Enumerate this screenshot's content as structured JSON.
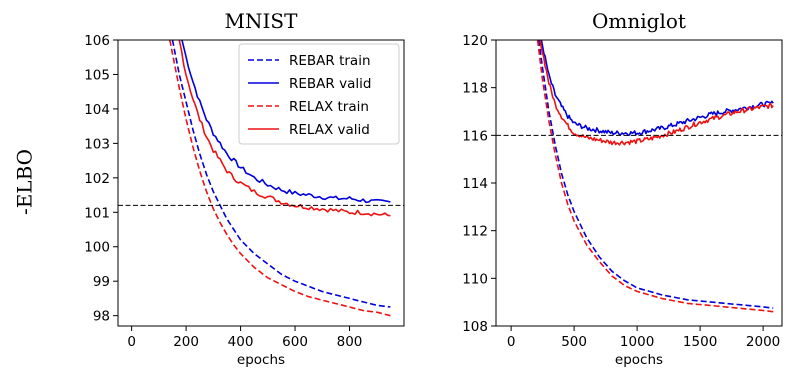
{
  "ylabel": "-ELBO",
  "legend": [
    {
      "label": "REBAR train",
      "color": "#0000dd",
      "dash": true
    },
    {
      "label": "REBAR valid",
      "color": "#0000dd",
      "dash": false
    },
    {
      "label": "RELAX train",
      "color": "#ee1111",
      "dash": true
    },
    {
      "label": "RELAX valid",
      "color": "#ee1111",
      "dash": false
    }
  ],
  "chart_data": [
    {
      "type": "line",
      "title": "MNIST",
      "xlabel": "epochs",
      "xlim": [
        -50,
        1000
      ],
      "ylim": [
        97.7,
        106
      ],
      "xticks": [
        0,
        200,
        400,
        600,
        800
      ],
      "yticks": [
        98,
        99,
        100,
        101,
        102,
        103,
        104,
        105,
        106
      ],
      "hline": 101.2,
      "legend_position": "top-right",
      "series": [
        {
          "name": "REBAR train",
          "color": "#0000dd",
          "dash": true,
          "noise": 0,
          "x": [
            150,
            175,
            200,
            225,
            250,
            275,
            300,
            325,
            350,
            375,
            400,
            450,
            500,
            550,
            600,
            650,
            700,
            750,
            800,
            850,
            900,
            950
          ],
          "y": [
            106.0,
            105.0,
            104.2,
            103.4,
            102.7,
            102.1,
            101.6,
            101.2,
            100.8,
            100.5,
            100.2,
            99.8,
            99.5,
            99.2,
            99.0,
            98.85,
            98.7,
            98.6,
            98.5,
            98.4,
            98.3,
            98.25
          ]
        },
        {
          "name": "REBAR valid",
          "color": "#0000dd",
          "dash": false,
          "noise": 0.07,
          "x": [
            185,
            200,
            225,
            250,
            275,
            300,
            325,
            350,
            375,
            400,
            450,
            500,
            550,
            600,
            650,
            700,
            750,
            800,
            850,
            900,
            950
          ],
          "y": [
            106.0,
            105.5,
            104.8,
            104.2,
            103.7,
            103.3,
            103.0,
            102.7,
            102.5,
            102.3,
            102.0,
            101.8,
            101.65,
            101.55,
            101.5,
            101.45,
            101.4,
            101.4,
            101.35,
            101.3,
            101.3
          ]
        },
        {
          "name": "RELAX train",
          "color": "#ee1111",
          "dash": true,
          "noise": 0,
          "x": [
            140,
            175,
            200,
            225,
            250,
            275,
            300,
            325,
            350,
            375,
            400,
            450,
            500,
            550,
            600,
            650,
            700,
            750,
            800,
            850,
            900,
            950
          ],
          "y": [
            106.0,
            104.6,
            103.7,
            102.9,
            102.2,
            101.6,
            101.1,
            100.7,
            100.35,
            100.05,
            99.8,
            99.4,
            99.1,
            98.9,
            98.7,
            98.55,
            98.45,
            98.35,
            98.25,
            98.15,
            98.1,
            98.0
          ]
        },
        {
          "name": "RELAX valid",
          "color": "#ee1111",
          "dash": false,
          "noise": 0.07,
          "x": [
            175,
            200,
            225,
            250,
            275,
            300,
            325,
            350,
            375,
            400,
            450,
            500,
            550,
            600,
            650,
            700,
            750,
            800,
            850,
            900,
            950
          ],
          "y": [
            106.0,
            105.0,
            104.3,
            103.7,
            103.2,
            102.8,
            102.5,
            102.2,
            102.0,
            101.85,
            101.6,
            101.45,
            101.3,
            101.2,
            101.15,
            101.1,
            101.05,
            101.0,
            101.0,
            100.95,
            100.9
          ]
        }
      ]
    },
    {
      "type": "line",
      "title": "Omniglot",
      "xlabel": "epochs",
      "xlim": [
        -120,
        2150
      ],
      "ylim": [
        108,
        120
      ],
      "xticks": [
        0,
        500,
        1000,
        1500,
        2000
      ],
      "yticks": [
        108,
        110,
        112,
        114,
        116,
        118,
        120
      ],
      "hline": 116.0,
      "series": [
        {
          "name": "REBAR train",
          "color": "#0000dd",
          "dash": true,
          "noise": 0,
          "x": [
            220,
            250,
            300,
            350,
            400,
            450,
            500,
            600,
            700,
            800,
            900,
            1000,
            1200,
            1400,
            1600,
            1800,
            2000,
            2080
          ],
          "y": [
            120.0,
            118.8,
            117.0,
            115.6,
            114.4,
            113.5,
            112.8,
            111.7,
            110.9,
            110.3,
            109.9,
            109.6,
            109.3,
            109.1,
            109.0,
            108.9,
            108.8,
            108.75
          ]
        },
        {
          "name": "REBAR valid",
          "color": "#0000dd",
          "dash": false,
          "noise": 0.1,
          "x": [
            240,
            300,
            350,
            400,
            450,
            500,
            600,
            700,
            800,
            900,
            1000,
            1100,
            1200,
            1300,
            1400,
            1500,
            1600,
            1700,
            1800,
            1900,
            2000,
            2080
          ],
          "y": [
            120.0,
            118.5,
            117.7,
            117.2,
            116.8,
            116.5,
            116.3,
            116.2,
            116.1,
            116.1,
            116.1,
            116.2,
            116.3,
            116.45,
            116.6,
            116.75,
            116.9,
            117.0,
            117.1,
            117.2,
            117.3,
            117.35
          ]
        },
        {
          "name": "RELAX train",
          "color": "#ee1111",
          "dash": true,
          "noise": 0,
          "x": [
            210,
            250,
            300,
            350,
            400,
            450,
            500,
            600,
            700,
            800,
            900,
            1000,
            1200,
            1400,
            1600,
            1800,
            2000,
            2080
          ],
          "y": [
            120.0,
            118.3,
            116.6,
            115.2,
            114.0,
            113.1,
            112.4,
            111.4,
            110.7,
            110.1,
            109.7,
            109.45,
            109.15,
            108.95,
            108.85,
            108.75,
            108.65,
            108.6
          ]
        },
        {
          "name": "RELAX valid",
          "color": "#ee1111",
          "dash": false,
          "noise": 0.1,
          "x": [
            230,
            300,
            350,
            400,
            450,
            500,
            600,
            700,
            800,
            900,
            1000,
            1100,
            1200,
            1300,
            1400,
            1500,
            1600,
            1700,
            1800,
            1900,
            2000,
            2080
          ],
          "y": [
            120.0,
            118.2,
            117.3,
            116.8,
            116.4,
            116.1,
            115.9,
            115.8,
            115.7,
            115.7,
            115.75,
            115.85,
            116.0,
            116.15,
            116.35,
            116.55,
            116.7,
            116.85,
            117.0,
            117.1,
            117.2,
            117.25
          ]
        }
      ]
    }
  ]
}
